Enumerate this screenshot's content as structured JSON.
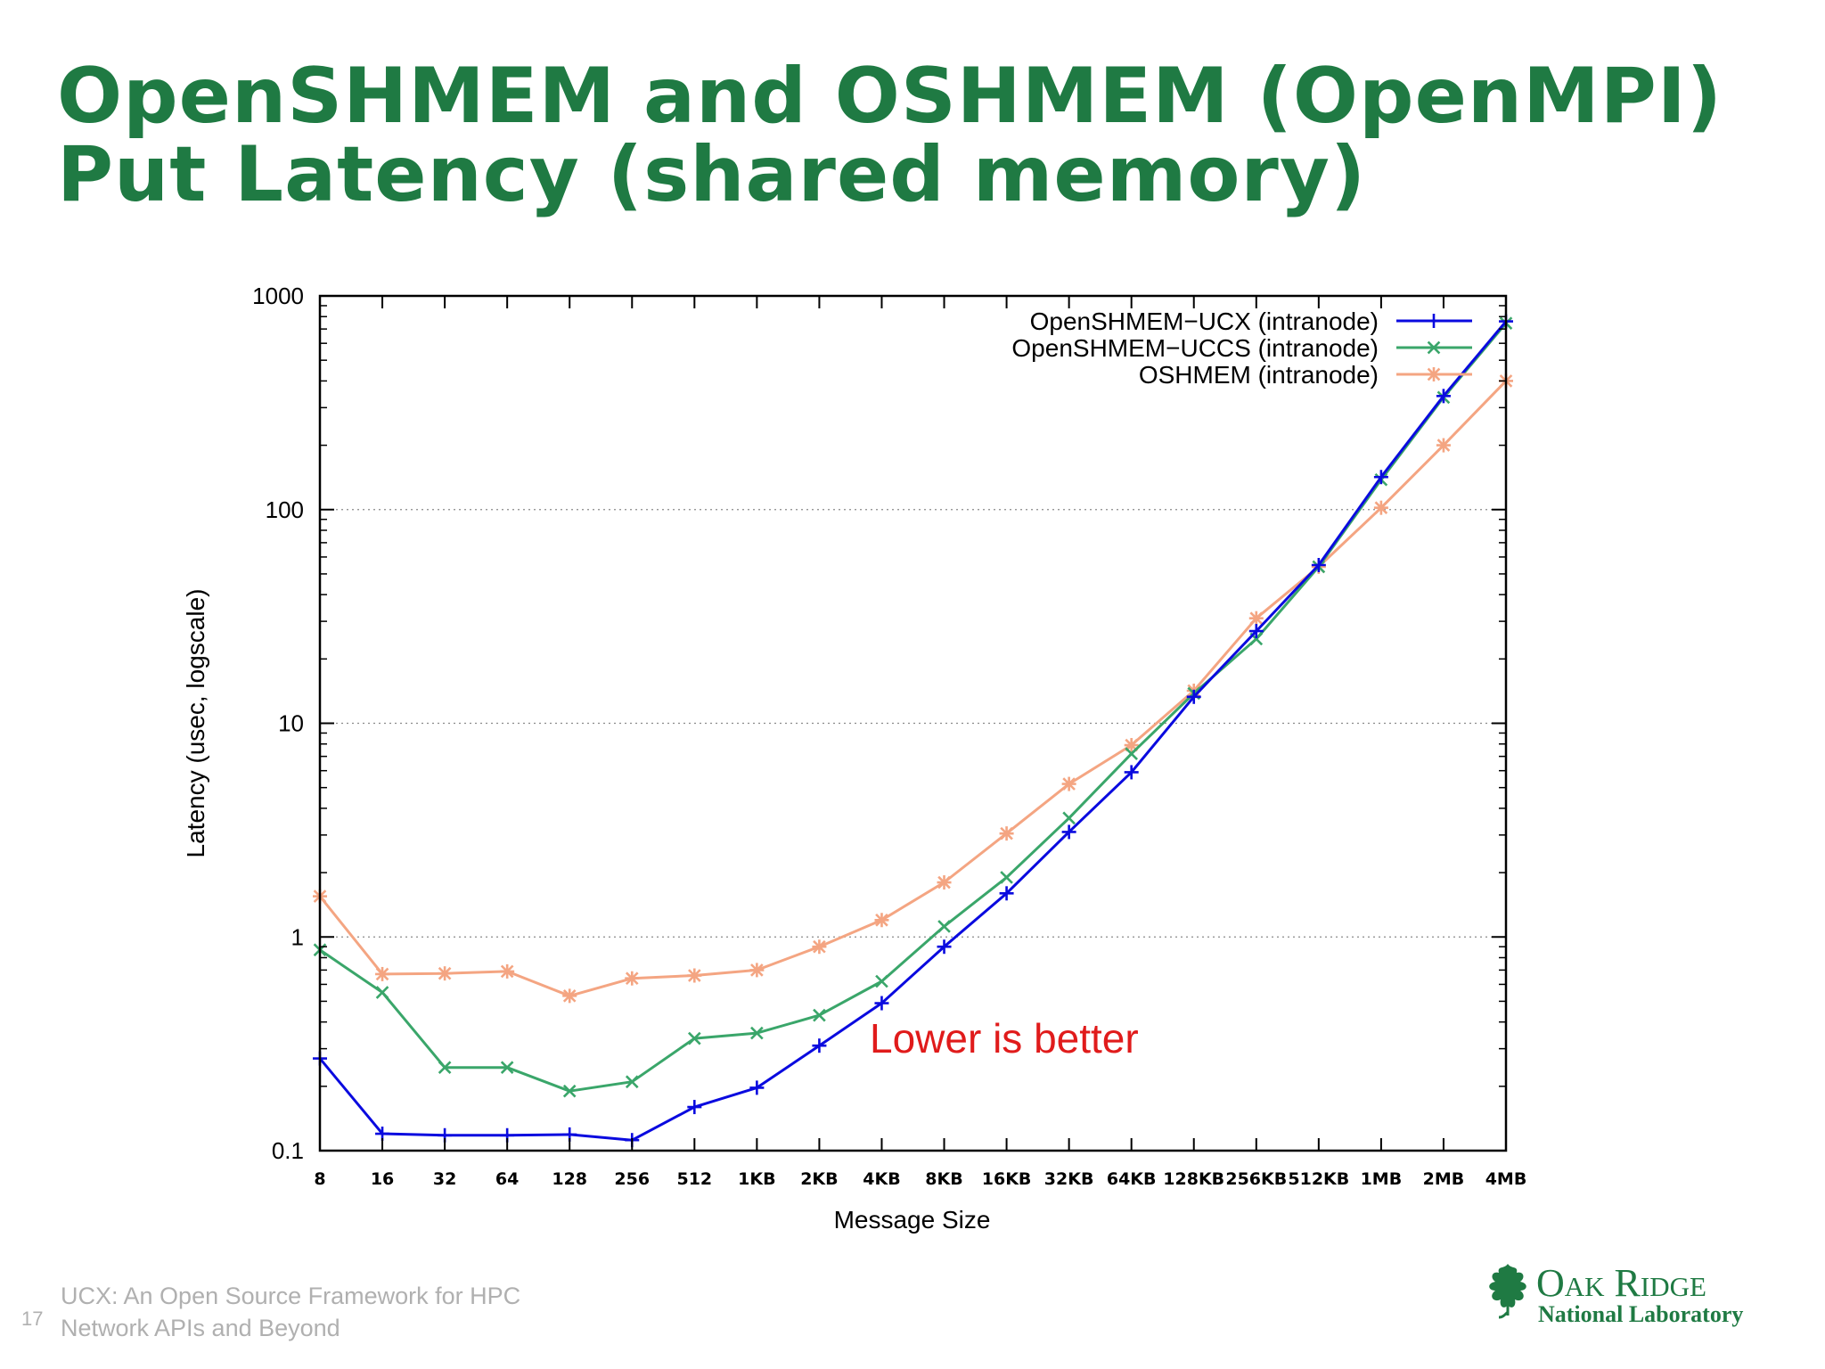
{
  "slide": {
    "title_line1": "OpenSHMEM and OSHMEM (OpenMPI)",
    "title_line2": "Put Latency (shared memory)",
    "page_number": "17",
    "footer_line1": "UCX: An Open Source Framework for HPC",
    "footer_line2": "Network APIs and Beyond",
    "logo_name": "Oak Ridge",
    "logo_subtitle": "National Laboratory",
    "brand_color": "#1f7a43"
  },
  "chart_data": {
    "type": "line",
    "title": "",
    "xlabel": "Message Size",
    "ylabel": "Latency (usec, logscale)",
    "y_scale": "log",
    "ylim": [
      0.1,
      1000
    ],
    "y_ticks": [
      "1000",
      "100",
      "10",
      "1",
      "0.1"
    ],
    "grid": "horizontal dotted at decades",
    "legend_position": "top-right",
    "annotation": "Lower is better",
    "categories": [
      "8",
      "16",
      "32",
      "64",
      "128",
      "256",
      "512",
      "1KB",
      "2KB",
      "4KB",
      "8KB",
      "16KB",
      "32KB",
      "64KB",
      "128KB",
      "256KB",
      "512KB",
      "1MB",
      "2MB",
      "4MB"
    ],
    "series": [
      {
        "name": "OpenSHMEM−UCX (intranode)",
        "color": "#0a0adf",
        "marker": "plus",
        "values": [
          0.27,
          0.12,
          0.118,
          0.118,
          0.119,
          0.112,
          0.16,
          0.197,
          0.31,
          0.49,
          0.9,
          1.6,
          3.1,
          5.9,
          13.3,
          27,
          55,
          142,
          340,
          760
        ]
      },
      {
        "name": "OpenSHMEM−UCCS (intranode)",
        "color": "#3aa66a",
        "marker": "cross",
        "values": [
          0.87,
          0.55,
          0.245,
          0.245,
          0.19,
          0.21,
          0.335,
          0.355,
          0.43,
          0.62,
          1.12,
          1.9,
          3.6,
          7.2,
          13.8,
          24.8,
          54,
          138,
          335,
          745
        ]
      },
      {
        "name": "OSHMEM (intranode)",
        "color": "#f4a582",
        "marker": "star",
        "values": [
          1.55,
          0.67,
          0.675,
          0.69,
          0.53,
          0.64,
          0.66,
          0.7,
          0.9,
          1.2,
          1.8,
          3.05,
          5.2,
          7.9,
          14.2,
          31,
          54,
          102,
          200,
          400
        ]
      }
    ]
  }
}
